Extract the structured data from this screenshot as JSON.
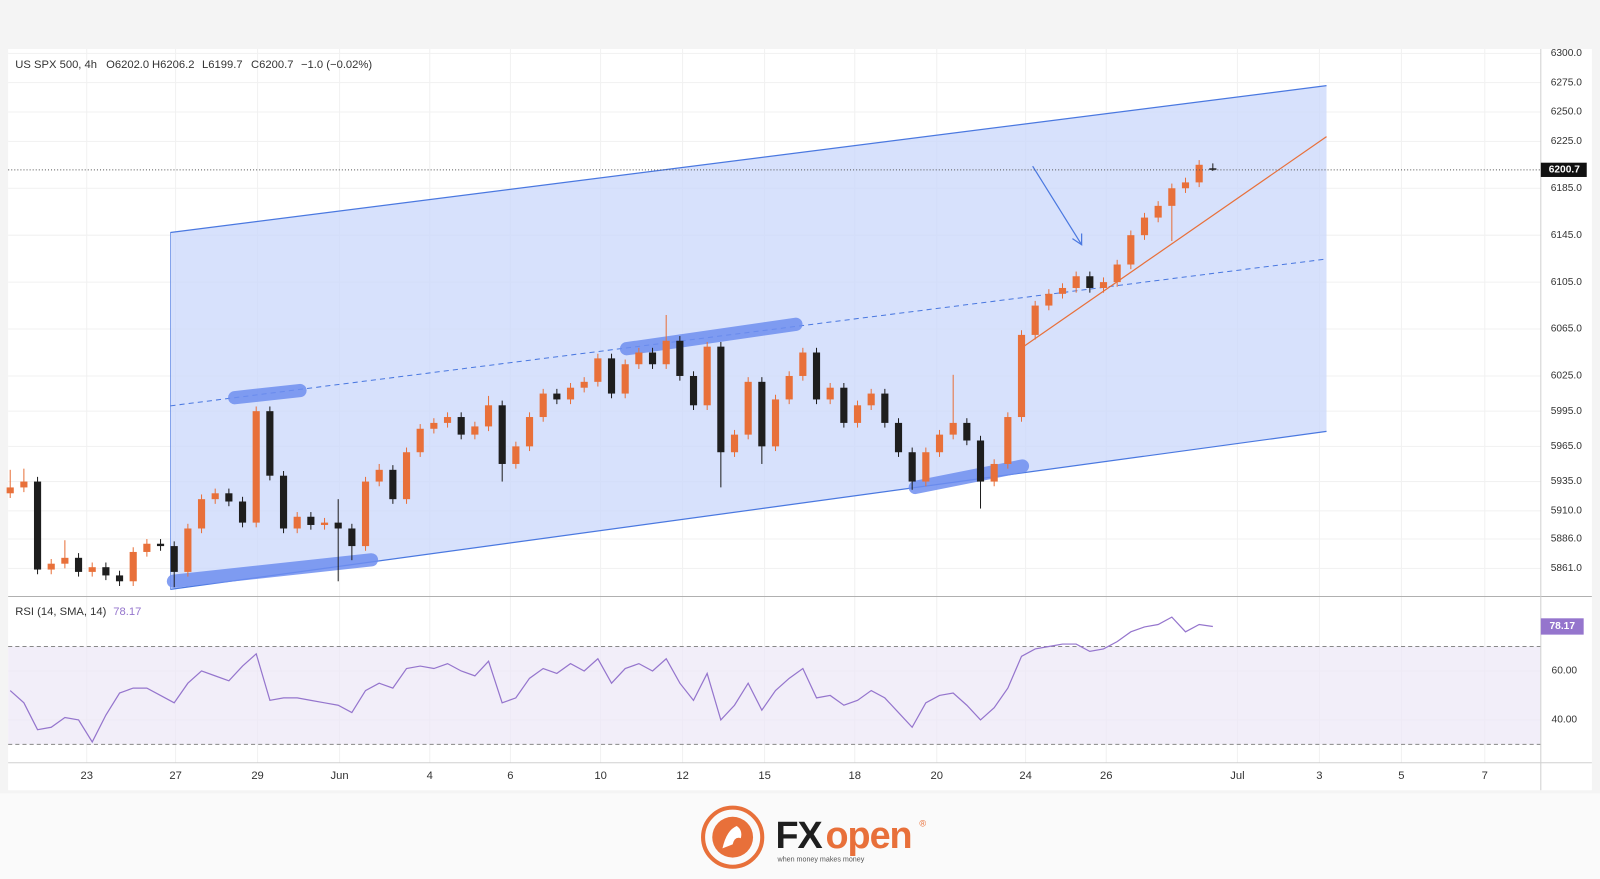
{
  "chart_data": {
    "type": "candlestick",
    "title": "US SPX 500, 4h",
    "header_labels": [
      "O6202.0",
      "H6206.2",
      "L6199.7",
      "C6200.7",
      "−1.0 (−0.02%)"
    ],
    "up_color": "#e8703a",
    "down_color": "#1e1e1e",
    "open": [
      5925,
      5930,
      5935,
      5860,
      5865,
      5870,
      5858,
      5862,
      5855,
      5850,
      5875,
      5882,
      5880,
      5858,
      5895,
      5920,
      5925,
      5918,
      5900,
      5995,
      5940,
      5895,
      5905,
      5898,
      5900,
      5895,
      5880,
      5935,
      5945,
      5920,
      5960,
      5980,
      5985,
      5990,
      5975,
      5982,
      6000,
      5950,
      5965,
      5990,
      6010,
      6005,
      6015,
      6020,
      6040,
      6010,
      6035,
      6045,
      6035,
      6055,
      6025,
      6000,
      6050,
      5960,
      5975,
      6020,
      5965,
      6005,
      6025,
      6045,
      6005,
      6015,
      5985,
      6000,
      6010,
      5985,
      5960,
      5935,
      5960,
      5975,
      5985,
      5970,
      5935,
      5950,
      5990,
      6060,
      6085,
      6095,
      6100,
      6110,
      6100,
      6105,
      6120,
      6145,
      6160,
      6170,
      6185,
      6190,
      6202.0
    ],
    "high": [
      5945,
      5946,
      5939,
      5869,
      5885,
      5874,
      5866,
      5866,
      5859,
      5879,
      5886,
      5886,
      5884,
      5899,
      5924,
      5929,
      5929,
      5922,
      5999,
      5999,
      5944,
      5909,
      5909,
      5904,
      5920,
      5899,
      5939,
      5950,
      5949,
      5964,
      5984,
      5989,
      5994,
      5994,
      5986,
      6008,
      6004,
      5969,
      5994,
      6014,
      6014,
      6019,
      6024,
      6044,
      6044,
      6039,
      6049,
      6049,
      6077,
      6059,
      6029,
      6054,
      6054,
      5979,
      6024,
      6024,
      6009,
      6029,
      6049,
      6049,
      6019,
      6019,
      6004,
      6014,
      6014,
      5989,
      5964,
      5964,
      5979,
      6026,
      5989,
      5974,
      5954,
      5994,
      6064,
      6089,
      6099,
      6104,
      6114,
      6114,
      6109,
      6124,
      6149,
      6164,
      6174,
      6189,
      6194,
      6209,
      6206.2
    ],
    "low": [
      5921,
      5926,
      5856,
      5856,
      5861,
      5854,
      5854,
      5851,
      5846,
      5846,
      5871,
      5876,
      5845,
      5854,
      5891,
      5916,
      5914,
      5896,
      5896,
      5936,
      5891,
      5891,
      5894,
      5894,
      5850,
      5868,
      5876,
      5931,
      5916,
      5916,
      5956,
      5976,
      5981,
      5971,
      5971,
      5978,
      5935,
      5946,
      5961,
      5986,
      6001,
      6001,
      6011,
      6016,
      6006,
      6006,
      6031,
      6031,
      6031,
      6021,
      5996,
      5996,
      5930,
      5956,
      5971,
      5950,
      5961,
      6001,
      6021,
      6001,
      6001,
      5981,
      5981,
      5996,
      5981,
      5956,
      5928,
      5931,
      5956,
      5971,
      5966,
      5912,
      5931,
      5946,
      5986,
      6056,
      6081,
      6091,
      6096,
      6096,
      6096,
      6101,
      6116,
      6141,
      6156,
      6140,
      6181,
      6186,
      6199.7
    ],
    "close": [
      5930,
      5935,
      5860,
      5865,
      5870,
      5858,
      5862,
      5855,
      5850,
      5875,
      5882,
      5880,
      5858,
      5895,
      5920,
      5925,
      5918,
      5900,
      5995,
      5940,
      5895,
      5905,
      5898,
      5900,
      5895,
      5880,
      5935,
      5945,
      5920,
      5960,
      5980,
      5985,
      5990,
      5975,
      5982,
      6000,
      5950,
      5965,
      5990,
      6010,
      6005,
      6015,
      6020,
      6040,
      6010,
      6035,
      6045,
      6035,
      6055,
      6025,
      6000,
      6050,
      5960,
      5975,
      6020,
      5965,
      6005,
      6025,
      6045,
      6005,
      6015,
      5985,
      6000,
      6010,
      5985,
      5960,
      5935,
      5960,
      5975,
      5985,
      5970,
      5935,
      5950,
      5990,
      6060,
      6085,
      6095,
      6100,
      6110,
      6100,
      6105,
      6120,
      6145,
      6160,
      6170,
      6185,
      6190,
      6205,
      6200.7
    ],
    "xlim": [
      -0.15,
      112
    ],
    "xticks": [
      {
        "value": 5.6,
        "label": "23"
      },
      {
        "value": 12.1,
        "label": "27"
      },
      {
        "value": 18.1,
        "label": "29"
      },
      {
        "value": 24.1,
        "label": "Jun"
      },
      {
        "value": 30.7,
        "label": "4"
      },
      {
        "value": 36.6,
        "label": "6"
      },
      {
        "value": 43.2,
        "label": "10"
      },
      {
        "value": 49.2,
        "label": "12"
      },
      {
        "value": 55.2,
        "label": "15"
      },
      {
        "value": 61.8,
        "label": "18"
      },
      {
        "value": 67.8,
        "label": "20"
      },
      {
        "value": 74.3,
        "label": "24"
      },
      {
        "value": 80.2,
        "label": "26"
      },
      {
        "value": 89.8,
        "label": "Jul"
      },
      {
        "value": 95.8,
        "label": "3"
      },
      {
        "value": 101.8,
        "label": "5"
      },
      {
        "value": 107.9,
        "label": "7"
      }
    ],
    "ylim": [
      5837,
      6302
    ],
    "yticks": [
      {
        "value": 6300,
        "label": "6300.0"
      },
      {
        "value": 6275,
        "label": "6275.0"
      },
      {
        "value": 6250,
        "label": "6250.0"
      },
      {
        "value": 6225,
        "label": "6225.0"
      },
      {
        "value": 6185,
        "label": "6185.0"
      },
      {
        "value": 6145,
        "label": "6145.0"
      },
      {
        "value": 6105,
        "label": "6105.0"
      },
      {
        "value": 6065,
        "label": "6065.0"
      },
      {
        "value": 6025,
        "label": "6025.0"
      },
      {
        "value": 5995,
        "label": "5995.0"
      },
      {
        "value": 5965,
        "label": "5965.0"
      },
      {
        "value": 5935,
        "label": "5935.0"
      },
      {
        "value": 5910,
        "label": "5910.0"
      },
      {
        "value": 5886,
        "label": "5886.0"
      },
      {
        "value": 5861,
        "label": "5861.0"
      }
    ],
    "last_price": {
      "value": 6200.7,
      "label": "6200.7"
    },
    "rsi": {
      "title": "RSI (14, SMA, 14)",
      "last_label": "78.17",
      "color": "#9575cd",
      "values": [
        52,
        47,
        36,
        37,
        41,
        40,
        31,
        42,
        51,
        53,
        53,
        50,
        47,
        55,
        60,
        58,
        56,
        62,
        67,
        48,
        49,
        49,
        48,
        47,
        46,
        43,
        52,
        55,
        53,
        61,
        62,
        61,
        63,
        60,
        58,
        64,
        47,
        49,
        57,
        61,
        59,
        63,
        60,
        65,
        55,
        61,
        63,
        60,
        65,
        55,
        48,
        59,
        40,
        46,
        55,
        44,
        52,
        57,
        61,
        49,
        50,
        46,
        48,
        52,
        49,
        43,
        37,
        47,
        50,
        51,
        46,
        40,
        45,
        53,
        66,
        69,
        70,
        71,
        71,
        68,
        69,
        72,
        76,
        78,
        79,
        82,
        76,
        79,
        78.17
      ],
      "ylim": [
        22.5,
        90.4
      ],
      "yticks": [
        {
          "value": 60,
          "label": "60.00"
        },
        {
          "value": 40,
          "label": "40.00"
        }
      ],
      "bands": [
        30,
        70
      ]
    }
  },
  "brand": {
    "name_dark": "FX",
    "name_color": "open",
    "mark": "®",
    "tagline": "when money makes money"
  }
}
